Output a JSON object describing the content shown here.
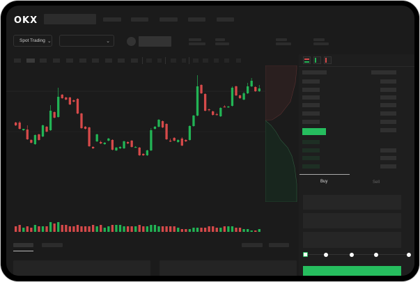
{
  "header": {
    "logo": "OKX"
  },
  "toolbar": {
    "market_selector": "Spot Trading",
    "chevron": "⌄"
  },
  "order_form": {
    "tabs": [
      "Buy",
      "Sell"
    ],
    "active_tab": "Buy",
    "slider_level": 0
  },
  "colors": {
    "up": "#22b455",
    "down": "#d64a4a",
    "background": "#1b1b1b",
    "accent": "#26bd5e"
  },
  "chart_data": {
    "type": "candlestick",
    "candles": [
      [
        68,
        64,
        69,
        63
      ],
      [
        68,
        59,
        70,
        58
      ],
      [
        57,
        59,
        59,
        56
      ],
      [
        58,
        44,
        64,
        43
      ],
      [
        43,
        39,
        44,
        38
      ],
      [
        37,
        50,
        51,
        36
      ],
      [
        51,
        43,
        52,
        42
      ],
      [
        48,
        64,
        65,
        47
      ],
      [
        62,
        55,
        63,
        54
      ],
      [
        57,
        85,
        93,
        56
      ],
      [
        83,
        75,
        84,
        74
      ],
      [
        76,
        105,
        118,
        75
      ],
      [
        108,
        103,
        109,
        102
      ],
      [
        104,
        101,
        105,
        100
      ],
      [
        104,
        94,
        105,
        93
      ],
      [
        100,
        98,
        101,
        97
      ],
      [
        102,
        81,
        103,
        80
      ],
      [
        81,
        60,
        82,
        59
      ],
      [
        62,
        59,
        63,
        58
      ],
      [
        61,
        34,
        62,
        33
      ],
      [
        33,
        31,
        34,
        30
      ],
      [
        41,
        51,
        52,
        40
      ],
      [
        40,
        38,
        42,
        37
      ],
      [
        37,
        39,
        40,
        36
      ],
      [
        42,
        45,
        46,
        41
      ],
      [
        43,
        29,
        44,
        28
      ],
      [
        28,
        32,
        33,
        27
      ],
      [
        31,
        33,
        34,
        30
      ],
      [
        31,
        41,
        42,
        30
      ],
      [
        40,
        38,
        41,
        37
      ],
      [
        42,
        33,
        43,
        32
      ],
      [
        33,
        33,
        34,
        32
      ],
      [
        32,
        21,
        33,
        20
      ],
      [
        23,
        21,
        24,
        20
      ],
      [
        21,
        28,
        29,
        20
      ],
      [
        28,
        57,
        60,
        27
      ],
      [
        59,
        62,
        63,
        58
      ],
      [
        62,
        72,
        73,
        61
      ],
      [
        70,
        61,
        71,
        60
      ],
      [
        66,
        44,
        67,
        43
      ],
      [
        42,
        41,
        45,
        40
      ],
      [
        46,
        42,
        47,
        41
      ],
      [
        40,
        43,
        44,
        39
      ],
      [
        45,
        35,
        47,
        34
      ],
      [
        43,
        41,
        44,
        40
      ],
      [
        43,
        63,
        64,
        42
      ],
      [
        63,
        78,
        79,
        62
      ],
      [
        78,
        120,
        136,
        77
      ],
      [
        122,
        110,
        123,
        109
      ],
      [
        109,
        85,
        110,
        84
      ],
      [
        87,
        86,
        88,
        84
      ],
      [
        84,
        79,
        85,
        78
      ],
      [
        80,
        79,
        82,
        78
      ],
      [
        77,
        89,
        90,
        76
      ],
      [
        91,
        90,
        93,
        90
      ],
      [
        90,
        91,
        92,
        89
      ],
      [
        92,
        118,
        120,
        91
      ],
      [
        120,
        107,
        121,
        106
      ],
      [
        107,
        103,
        108,
        102
      ],
      [
        101,
        110,
        112,
        100
      ],
      [
        110,
        120,
        125,
        109
      ],
      [
        120,
        128,
        132,
        119
      ],
      [
        119,
        113,
        120,
        112
      ],
      [
        113,
        117,
        122,
        112
      ]
    ],
    "volumes": [
      4,
      5,
      3,
      4,
      3,
      5,
      4,
      4,
      4,
      7,
      6,
      7,
      5,
      5,
      4,
      4,
      5,
      4,
      4,
      4,
      5,
      4,
      5,
      3,
      4,
      5,
      5,
      5,
      4,
      4,
      4,
      4,
      5,
      4,
      4,
      5,
      5,
      4,
      4,
      4,
      4,
      4,
      3,
      2,
      2,
      2,
      3,
      3,
      3,
      3,
      4,
      4,
      3,
      3,
      4,
      4,
      4,
      3,
      3,
      2,
      2,
      1,
      1,
      2
    ]
  }
}
